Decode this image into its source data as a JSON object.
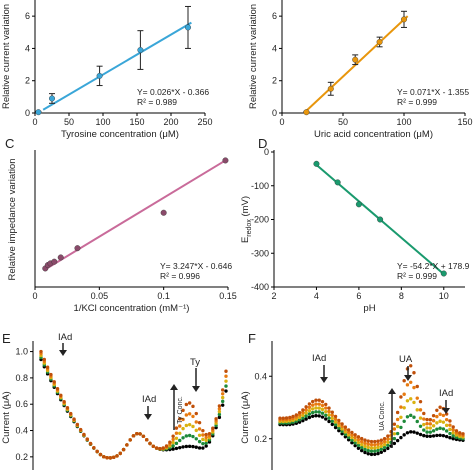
{
  "chart_data": [
    {
      "panel": "",
      "type": "scatter",
      "xlabel": "Tyrosine concentration (μM)",
      "ylabel": "Relative current variation",
      "xlim": [
        0,
        250
      ],
      "ylim": [
        0,
        7
      ],
      "xticks": [
        "0",
        "50",
        "100",
        "150",
        "200",
        "250"
      ],
      "yticks": [
        "0",
        "2",
        "4",
        "6"
      ],
      "x": [
        5,
        25,
        95,
        155,
        225
      ],
      "y": [
        0.05,
        0.9,
        2.3,
        3.9,
        5.3
      ],
      "yerr": [
        0.05,
        0.3,
        0.6,
        1.2,
        1.3
      ],
      "fit": [
        [
          12,
          0.2
        ],
        [
          230,
          5.6
        ]
      ],
      "color": "#3aa6d8",
      "equation": "Y= 0.026*X - 0.366",
      "r2": "R² = 0.989"
    },
    {
      "panel": "",
      "type": "scatter",
      "xlabel": "Uric acid concentration (μM)",
      "ylabel": "Relative current variation",
      "xlim": [
        0,
        150
      ],
      "ylim": [
        0,
        7
      ],
      "xticks": [
        "0",
        "50",
        "100",
        "150"
      ],
      "yticks": [
        "0",
        "2",
        "4",
        "6"
      ],
      "x": [
        20,
        40,
        60,
        80,
        100
      ],
      "y": [
        0.05,
        1.5,
        3.3,
        4.4,
        5.8
      ],
      "yerr": [
        0.05,
        0.4,
        0.3,
        0.3,
        0.5
      ],
      "fit": [
        [
          18,
          0.0
        ],
        [
          103,
          6.0
        ]
      ],
      "color": "#e8960c",
      "equation": "Y= 0.071*X - 1.355",
      "r2": "R² = 0.999"
    },
    {
      "panel": "C",
      "type": "scatter",
      "xlabel": "1/KCl concentration (mM⁻¹)",
      "ylabel": "Relative impedance variation",
      "xlim": [
        0,
        0.15
      ],
      "ylim": [
        -0.75,
        0.05
      ],
      "xticks": [
        "0",
        "0.05",
        "0.1",
        "0.15"
      ],
      "yticks": [],
      "x": [
        0.008,
        0.01,
        0.012,
        0.015,
        0.02,
        0.033,
        0.1,
        0.148
      ],
      "y": [
        -0.64,
        -0.62,
        -0.61,
        -0.6,
        -0.575,
        -0.52,
        -0.31,
        0.0
      ],
      "fit": [
        [
          0.007,
          -0.65
        ],
        [
          0.148,
          0.0
        ]
      ],
      "color": "#c96b9a",
      "marker_color": "#8a4a6a",
      "equation": "Y= 3.247*X - 0.646",
      "r2": "R² = 0.996"
    },
    {
      "panel": "D",
      "type": "scatter",
      "xlabel": "pH",
      "ylabel": "Eredox (mV)",
      "xlim": [
        2,
        11
      ],
      "ylim": [
        -400,
        0
      ],
      "xticks": [
        "2",
        "4",
        "6",
        "8",
        "10"
      ],
      "yticks": [
        "-400",
        "-300",
        "-200",
        "-100",
        "0"
      ],
      "x": [
        4,
        5,
        6,
        7,
        10
      ],
      "y": [
        -35,
        -90,
        -155,
        -200,
        -360
      ],
      "fit": [
        [
          4,
          -38
        ],
        [
          10,
          -362
        ]
      ],
      "color": "#1a9a6e",
      "equation": "Y= -54.2*X + 178.9",
      "r2": "R² = 0.999"
    },
    {
      "panel": "E",
      "type": "line",
      "ylabel": "Current (μA)",
      "ylim": [
        0.1,
        1.05
      ],
      "yticks": [
        "0.2",
        "0.4",
        "0.6",
        "0.8",
        "1.0"
      ],
      "series_colors": [
        "#000000",
        "#1e8a3a",
        "#d9b210",
        "#e87a10",
        "#c0500a"
      ],
      "annotations": [
        "IAd",
        "IAd",
        "Ty",
        "Ty Conc."
      ]
    },
    {
      "panel": "F",
      "type": "line",
      "ylabel": "Current (μA)",
      "ylim": [
        0.1,
        0.5
      ],
      "yticks": [
        "0.2",
        "0.4"
      ],
      "series_colors": [
        "#000000",
        "#1e8a3a",
        "#d9b210",
        "#e87a10",
        "#c0500a"
      ],
      "annotations": [
        "IAd",
        "UA",
        "IAd",
        "UA Conc."
      ]
    }
  ]
}
